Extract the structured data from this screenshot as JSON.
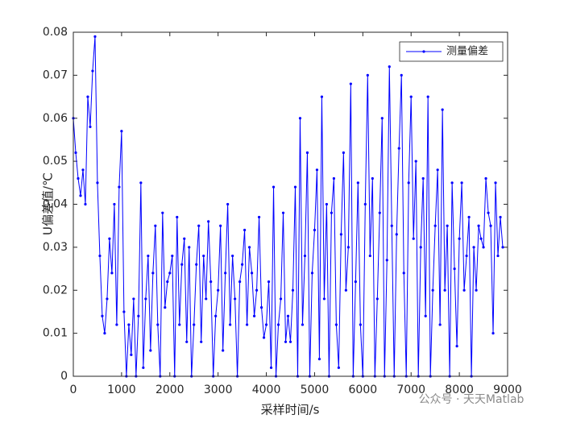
{
  "chart_data": {
    "type": "line",
    "xlabel": "采样时间/s",
    "ylabel": "U偏差值/℃",
    "xlim": [
      0,
      9000
    ],
    "xticks": [
      0,
      1000,
      2000,
      3000,
      4000,
      5000,
      6000,
      7000,
      8000,
      9000
    ],
    "ylim": [
      0,
      0.08
    ],
    "yticks": [
      0,
      0.01,
      0.02,
      0.03,
      0.04,
      0.05,
      0.06,
      0.07,
      0.08
    ],
    "legend": "northeast",
    "markers": true,
    "x": [
      0,
      50,
      100,
      150,
      200,
      250,
      300,
      350,
      400,
      450,
      500,
      550,
      600,
      650,
      700,
      750,
      800,
      850,
      900,
      950,
      1000,
      1050,
      1100,
      1150,
      1200,
      1250,
      1300,
      1350,
      1400,
      1450,
      1500,
      1550,
      1600,
      1650,
      1700,
      1750,
      1800,
      1850,
      1900,
      1950,
      2000,
      2050,
      2100,
      2150,
      2200,
      2250,
      2300,
      2350,
      2400,
      2450,
      2500,
      2550,
      2600,
      2650,
      2700,
      2750,
      2800,
      2850,
      2900,
      2950,
      3000,
      3050,
      3100,
      3150,
      3200,
      3250,
      3300,
      3350,
      3400,
      3450,
      3500,
      3550,
      3600,
      3650,
      3700,
      3750,
      3800,
      3850,
      3900,
      3950,
      4000,
      4050,
      4100,
      4150,
      4200,
      4250,
      4300,
      4350,
      4400,
      4450,
      4500,
      4550,
      4600,
      4650,
      4700,
      4750,
      4800,
      4850,
      4900,
      4950,
      5000,
      5050,
      5100,
      5150,
      5200,
      5250,
      5300,
      5350,
      5400,
      5450,
      5500,
      5550,
      5600,
      5650,
      5700,
      5750,
      5800,
      5850,
      5900,
      5950,
      6000,
      6050,
      6100,
      6150,
      6200,
      6250,
      6300,
      6350,
      6400,
      6450,
      6500,
      6550,
      6600,
      6650,
      6700,
      6750,
      6800,
      6850,
      6900,
      6950,
      7000,
      7050,
      7100,
      7150,
      7200,
      7250,
      7300,
      7350,
      7400,
      7450,
      7500,
      7550,
      7600,
      7650,
      7700,
      7750,
      7800,
      7850,
      7900,
      7950,
      8000,
      8050,
      8100,
      8150,
      8200,
      8250,
      8300,
      8350,
      8400,
      8450,
      8500,
      8550,
      8600,
      8650,
      8700,
      8750,
      8800,
      8850,
      8900
    ],
    "series": [
      {
        "name": "测量偏差",
        "color": "#0000ff",
        "values": [
          0.06,
          0.052,
          0.046,
          0.042,
          0.048,
          0.04,
          0.065,
          0.058,
          0.071,
          0.079,
          0.045,
          0.028,
          0.014,
          0.01,
          0.018,
          0.032,
          0.024,
          0.04,
          0.012,
          0.044,
          0.057,
          0.015,
          0.0,
          0.012,
          0.005,
          0.018,
          0.0,
          0.014,
          0.045,
          0.002,
          0.018,
          0.028,
          0.006,
          0.024,
          0.035,
          0.012,
          0.0,
          0.038,
          0.016,
          0.022,
          0.024,
          0.028,
          0.0,
          0.037,
          0.012,
          0.026,
          0.032,
          0.008,
          0.03,
          0.0,
          0.012,
          0.026,
          0.035,
          0.008,
          0.028,
          0.018,
          0.036,
          0.022,
          0.0,
          0.014,
          0.02,
          0.035,
          0.006,
          0.024,
          0.04,
          0.012,
          0.028,
          0.018,
          0.0,
          0.022,
          0.026,
          0.034,
          0.012,
          0.03,
          0.024,
          0.014,
          0.02,
          0.037,
          0.016,
          0.009,
          0.012,
          0.022,
          0.002,
          0.044,
          0.0,
          0.012,
          0.018,
          0.038,
          0.008,
          0.014,
          0.008,
          0.02,
          0.044,
          0.0,
          0.06,
          0.012,
          0.028,
          0.052,
          0.0,
          0.024,
          0.034,
          0.048,
          0.004,
          0.065,
          0.018,
          0.04,
          0.0,
          0.038,
          0.046,
          0.012,
          0.002,
          0.033,
          0.052,
          0.02,
          0.03,
          0.068,
          0.0,
          0.022,
          0.045,
          0.012,
          0.0,
          0.04,
          0.07,
          0.028,
          0.046,
          0.0,
          0.018,
          0.038,
          0.06,
          0.0,
          0.027,
          0.072,
          0.035,
          0.0,
          0.033,
          0.053,
          0.07,
          0.024,
          0.0,
          0.045,
          0.065,
          0.032,
          0.05,
          0.0,
          0.03,
          0.046,
          0.014,
          0.065,
          0.0,
          0.02,
          0.035,
          0.048,
          0.012,
          0.062,
          0.02,
          0.035,
          0.0,
          0.045,
          0.025,
          0.007,
          0.032,
          0.045,
          0.02,
          0.028,
          0.037,
          0.0,
          0.03,
          0.02,
          0.035,
          0.032,
          0.03,
          0.046,
          0.038,
          0.035,
          0.01,
          0.045,
          0.028,
          0.037,
          0.03
        ]
      }
    ]
  },
  "watermark": "公众号 · 天天Matlab"
}
